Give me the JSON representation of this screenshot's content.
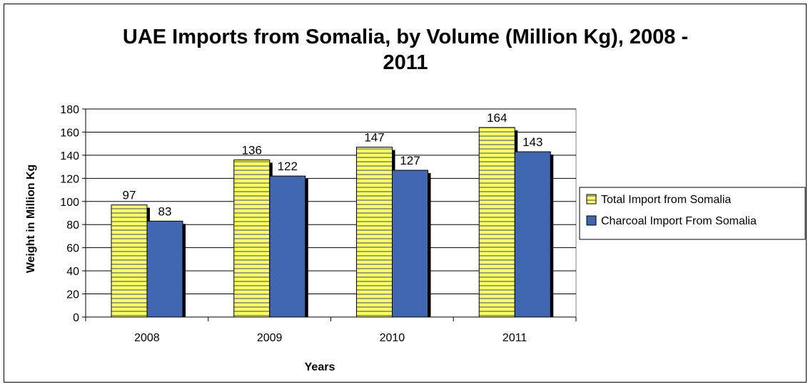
{
  "chart_data": {
    "type": "bar",
    "title_line1": "UAE Imports from Somalia, by Volume (Million Kg), 2008 -",
    "title_line2": "2011",
    "xlabel": "Years",
    "ylabel": "Weight in Million Kg",
    "categories": [
      "2008",
      "2009",
      "2010",
      "2011"
    ],
    "ylim": [
      0,
      180
    ],
    "ytick_step": 20,
    "grid": true,
    "legend_position": "right",
    "series": [
      {
        "name": "Total Import from Somalia",
        "values": [
          97,
          136,
          147,
          164
        ],
        "color": "#ffff66",
        "pattern": "horizontal-stripes",
        "stripe_color": "#9aa36e"
      },
      {
        "name": "Charcoal Import From Somalia",
        "values": [
          83,
          122,
          127,
          143
        ],
        "color": "#4066b0"
      }
    ]
  }
}
